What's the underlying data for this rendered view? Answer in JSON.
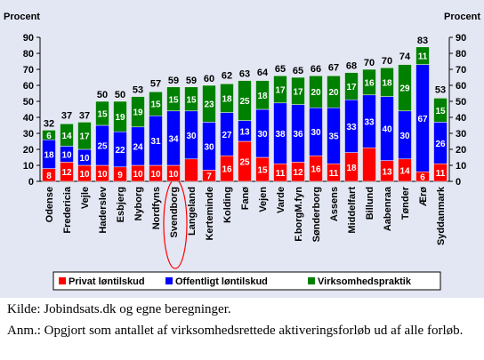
{
  "chart_data": {
    "type": "stacked_bar",
    "y_label": "Procent",
    "y2_label": "Procent",
    "categories": [
      "Odense",
      "Fredericia",
      "Vejle",
      "Haderslev",
      "Esbjerg",
      "Nyborg",
      "Nordfyns",
      "Svendborg",
      "Langeland",
      "Kerteminde",
      "Kolding",
      "Fanø",
      "Vejen",
      "Varde",
      "F.borgM.fyn",
      "Sønderborg",
      "Assens",
      "Middelfart",
      "Billund",
      "Aabenraa",
      "Tønder",
      "Ærø",
      "Syddanmark"
    ],
    "series": [
      {
        "name": "Privat løntilskud",
        "color": "#ff0000",
        "values": [
          8,
          12,
          10,
          10,
          9,
          10,
          10,
          10,
          14,
          7,
          16,
          25,
          15,
          11,
          12,
          16,
          11,
          18,
          21,
          13,
          14,
          6,
          11
        ],
        "value_labels": [
          "8",
          "12",
          "10",
          "10",
          "9",
          "10",
          "10",
          "10",
          null,
          "7",
          "16",
          "25",
          "15",
          "11",
          "12",
          "16",
          "11",
          "18",
          null,
          "13",
          "14",
          "6",
          "11"
        ]
      },
      {
        "name": "Offentligt løntilskud",
        "color": "#0000ff",
        "values": [
          18,
          10,
          10,
          25,
          22,
          24,
          31,
          34,
          30,
          30,
          27,
          13,
          30,
          38,
          36,
          30,
          35,
          33,
          33,
          40,
          30,
          67,
          26
        ]
      },
      {
        "name": "Virksomhedspraktik",
        "color": "#008000",
        "values": [
          6,
          14,
          17,
          15,
          19,
          19,
          15,
          15,
          15,
          23,
          18,
          25,
          18,
          17,
          17,
          20,
          20,
          17,
          16,
          18,
          29,
          11,
          15
        ]
      }
    ],
    "totals": [
      32,
      37,
      37,
      50,
      50,
      53,
      57,
      59,
      59,
      60,
      62,
      63,
      64,
      65,
      65,
      66,
      67,
      68,
      70,
      70,
      74,
      83,
      53
    ],
    "ylim": [
      0,
      90
    ],
    "yticks": [
      0,
      10,
      20,
      30,
      40,
      50,
      60,
      70,
      80,
      90
    ],
    "y2lim": [
      0,
      90
    ],
    "y2ticks": [
      0,
      10,
      20,
      30,
      40,
      50,
      60,
      70,
      80,
      90
    ],
    "legend": "bottom"
  },
  "notes": [
    "Kilde: Jobindsats.dk og egne beregninger.",
    "Anm.: Opgjort som antallet af virksomhedsrettede aktiveringsforløb ud af alle forløb."
  ]
}
